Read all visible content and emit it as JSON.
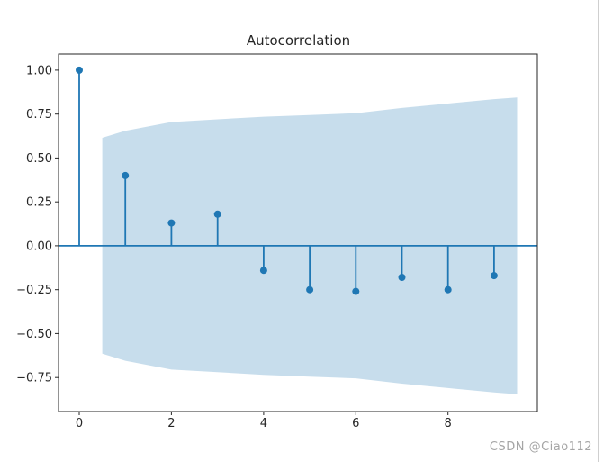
{
  "chart_data": {
    "type": "stem",
    "title": "Autocorrelation",
    "x": [
      0,
      1,
      2,
      3,
      4,
      5,
      6,
      7,
      8,
      9
    ],
    "acf": [
      1.0,
      0.4,
      0.13,
      0.18,
      -0.14,
      -0.25,
      -0.26,
      -0.18,
      -0.25,
      -0.17
    ],
    "confidence_band": {
      "x": [
        0.5,
        1,
        2,
        3,
        4,
        5,
        6,
        7,
        8,
        9,
        9.5
      ],
      "upper": [
        0.615,
        0.655,
        0.705,
        0.72,
        0.735,
        0.745,
        0.755,
        0.785,
        0.81,
        0.835,
        0.845
      ],
      "lower": [
        -0.615,
        -0.655,
        -0.705,
        -0.72,
        -0.735,
        -0.745,
        -0.755,
        -0.785,
        -0.81,
        -0.835,
        -0.845
      ]
    },
    "xticks": {
      "values": [
        0,
        2,
        4,
        6,
        8
      ],
      "labels": [
        "0",
        "2",
        "4",
        "6",
        "8"
      ]
    },
    "yticks": {
      "values": [
        1.0,
        0.75,
        0.5,
        0.25,
        0.0,
        -0.25,
        -0.5,
        -0.75
      ],
      "labels": [
        "1.00",
        "0.75",
        "0.50",
        "0.25",
        "0.00",
        "−0.25",
        "−0.50",
        "−0.75"
      ]
    },
    "xlim": [
      -0.45,
      9.94
    ],
    "ylim": [
      -0.944,
      1.092
    ],
    "grid": false,
    "legend": "none",
    "colors": {
      "stem": "#1f77b4",
      "marker": "#1f77b4",
      "band": "#1f77b4",
      "band_opacity": 0.25,
      "axis": "#262626",
      "tick_label": "#262626",
      "title": "#262626"
    }
  },
  "watermark": {
    "text": "CSDN @Ciao112",
    "color": "#a5a5a5"
  }
}
